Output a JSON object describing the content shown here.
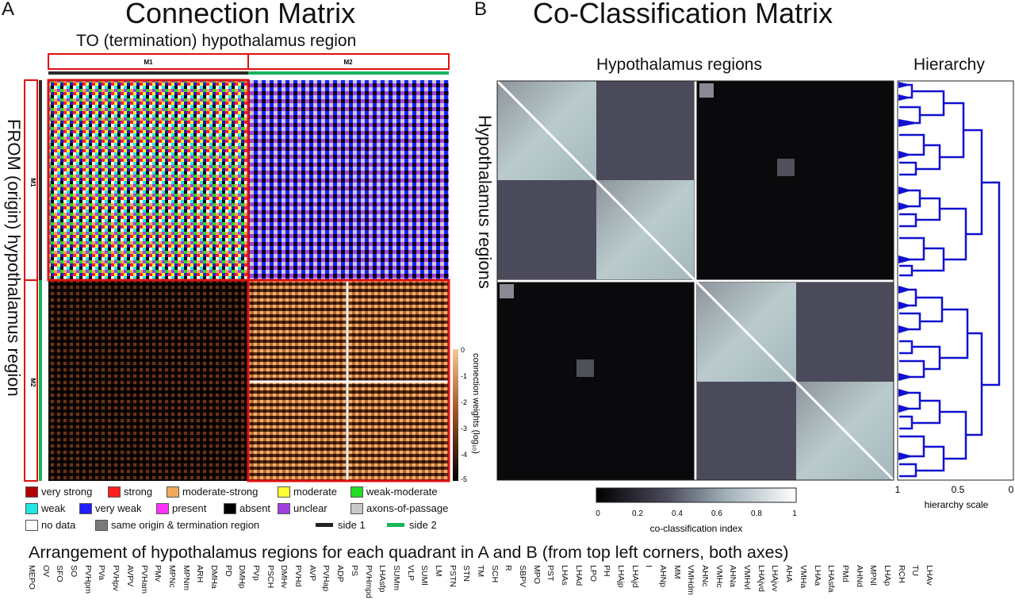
{
  "panel_a": {
    "letter": "A",
    "title": "Connection Matrix",
    "top_label": "TO (termination) hypothalamus region",
    "left_label": "FROM (origin) hypothalamus region",
    "top_groups": [
      "M1",
      "M2"
    ],
    "left_groups": [
      "M1",
      "M2"
    ],
    "colorbar": {
      "label": "connection weights (log₁₀)",
      "ticks": [
        "0",
        "-1",
        "-2",
        "-3",
        "-4",
        "-5"
      ],
      "colors": [
        "#f6c896",
        "#7a3a15",
        "#0a0a0a"
      ]
    },
    "legend": [
      {
        "label": "very strong",
        "color": "#b30000"
      },
      {
        "label": "strong",
        "color": "#ff2020"
      },
      {
        "label": "moderate-strong",
        "color": "#f4a65a"
      },
      {
        "label": "moderate",
        "color": "#ffff33"
      },
      {
        "label": "weak-moderate",
        "color": "#22dd22"
      },
      {
        "label": "weak",
        "color": "#22e5e5"
      },
      {
        "label": "very weak",
        "color": "#1f1fff"
      },
      {
        "label": "present",
        "color": "#ff33ff"
      },
      {
        "label": "absent",
        "color": "#000000"
      },
      {
        "label": "unclear",
        "color": "#a040e0"
      },
      {
        "label": "axons-of-passage",
        "color": "#c8c8c8"
      },
      {
        "label": "no data",
        "color": "#ffffff"
      },
      {
        "label": "same origin & termination region",
        "color": "#7a7a7a"
      }
    ],
    "sides": [
      {
        "label": "side 1",
        "color": "#222222"
      },
      {
        "label": "side 2",
        "color": "#19b35a"
      }
    ]
  },
  "panel_b": {
    "letter": "B",
    "title": "Co-Classification Matrix",
    "top_label": "Hypothalamus regions",
    "left_label": "Hypothalamus regions",
    "hierarchy_title": "Hierarchy",
    "hierarchy_axis": {
      "ticks": [
        "1",
        "0.5",
        "0"
      ],
      "label": "hierarchy scale"
    },
    "colorbar": {
      "label": "co-classification index",
      "ticks": [
        "0",
        "0.2",
        "0.4",
        "0.6",
        "0.8",
        "1"
      ],
      "colors": [
        "#000000",
        "#6b6b80",
        "#cfe4e4",
        "#ffffff"
      ]
    },
    "dendrogram_color": "#1010d0"
  },
  "bottom": {
    "title": "Arrangement of hypothalamus regions for each quadrant in A and B (from top left corners, both axes)",
    "regions": [
      "MEPO",
      "OV",
      "SFO",
      "SO",
      "PVHpm",
      "PVa",
      "PVHpv",
      "AVPV",
      "PVHam",
      "PMv",
      "MPNc",
      "MPNm",
      "ARH",
      "DMHa",
      "PD",
      "DMHp",
      "PVp",
      "PSCH",
      "DMHv",
      "PVHd",
      "AVP",
      "PVHap",
      "ADP",
      "PS",
      "PVHmpd",
      "LHAsfp",
      "SUMm",
      "VLP",
      "SUMl",
      "LM",
      "PSTN",
      "STN",
      "TM",
      "SCH",
      "R",
      "SBPV",
      "MPO",
      "PST",
      "LHAs",
      "LHAd",
      "LPO",
      "PH",
      "LHAjp",
      "LHAjd",
      "I",
      "AHNp",
      "MM",
      "VMHdm",
      "AHNc",
      "VMHc",
      "AHNa",
      "VMHvl",
      "LHAjvd",
      "LHAjvv",
      "AHA",
      "VMHa",
      "LHAa",
      "LHAsfa",
      "PMd",
      "AHNd",
      "MPNl",
      "LHAp",
      "RCH",
      "TU",
      "LHAv"
    ]
  }
}
